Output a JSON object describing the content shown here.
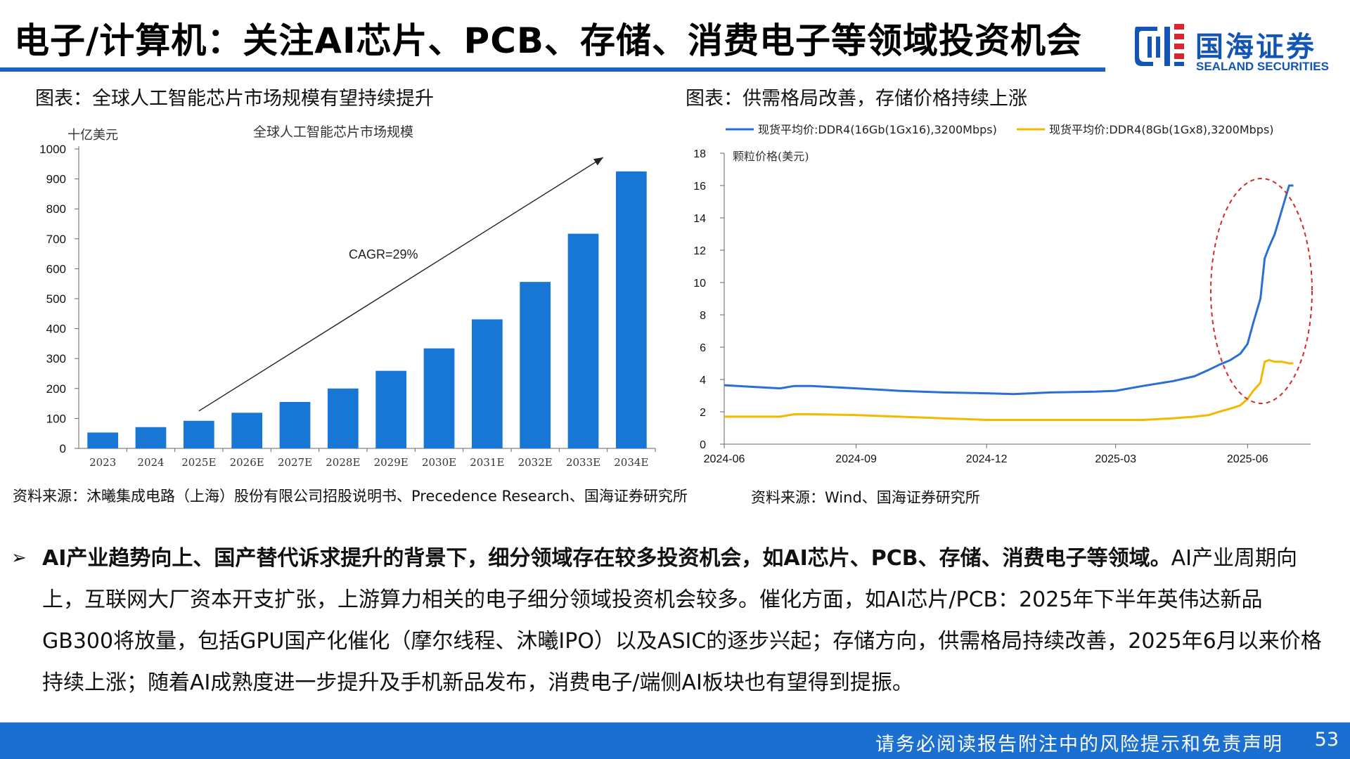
{
  "header": {
    "title": "电子/计算机：关注AI芯片、PCB、存储、消费电子等领域投资机会",
    "logo_cn": "国海证券",
    "logo_en": "SEALAND SECURITIES",
    "accent_color": "#1a62c4"
  },
  "left_figure": {
    "caption": "图表：全球人工智能芯片市场规模有望持续提升",
    "source": "资料来源：沐曦集成电路（上海）股份有限公司招股说明书、Precedence Research、国海证券研究所"
  },
  "right_figure": {
    "caption": "图表：供需格局改善，存储价格持续上涨",
    "source": "资料来源：Wind、国海证券研究所"
  },
  "chart_data": [
    {
      "type": "bar",
      "title": "全球人工智能芯片市场规模",
      "ylabel": "十亿美元",
      "xlabel": "",
      "categories": [
        "2023",
        "2024",
        "2025E",
        "2026E",
        "2027E",
        "2028E",
        "2029E",
        "2030E",
        "2031E",
        "2032E",
        "2033E",
        "2034E"
      ],
      "values": [
        53,
        71,
        92,
        119,
        155,
        200,
        259,
        334,
        431,
        556,
        717,
        925
      ],
      "ylim": [
        0,
        1000
      ],
      "yticks": [
        0,
        100,
        200,
        300,
        400,
        500,
        600,
        700,
        800,
        900,
        1000
      ],
      "annotation": "CAGR=29%",
      "bar_color": "#1877d4",
      "grid": false
    },
    {
      "type": "line",
      "ylabel": "颗粒价格(美元)",
      "ylim": [
        0,
        18
      ],
      "yticks": [
        0,
        2,
        4,
        6,
        8,
        10,
        12,
        14,
        16,
        18
      ],
      "xticks": [
        "2024-06",
        "2024-09",
        "2024-12",
        "2025-03",
        "2025-06"
      ],
      "x": [
        "2024-06-01",
        "2024-06-20",
        "2024-07-10",
        "2024-07-20",
        "2024-08-01",
        "2024-09-01",
        "2024-10-01",
        "2024-11-01",
        "2024-12-01",
        "2024-12-20",
        "2025-01-15",
        "2025-02-15",
        "2025-03-01",
        "2025-03-20",
        "2025-04-10",
        "2025-04-25",
        "2025-05-05",
        "2025-05-12",
        "2025-05-20",
        "2025-05-27",
        "2025-06-01",
        "2025-06-05",
        "2025-06-10",
        "2025-06-13",
        "2025-06-16",
        "2025-06-20",
        "2025-06-25",
        "2025-06-30",
        "2025-07-03"
      ],
      "series": [
        {
          "name": "现货平均价:DDR4(16Gb(1Gx16),3200Mbps)",
          "color": "#2a6fd6",
          "values": [
            3.65,
            3.55,
            3.45,
            3.6,
            3.6,
            3.45,
            3.3,
            3.2,
            3.15,
            3.1,
            3.2,
            3.25,
            3.3,
            3.6,
            3.9,
            4.2,
            4.6,
            4.9,
            5.2,
            5.6,
            6.2,
            7.5,
            9.0,
            11.5,
            12.2,
            13.0,
            14.5,
            16.0,
            16.0
          ]
        },
        {
          "name": "现货平均价:DDR4(8Gb(1Gx8),3200Mbps)",
          "color": "#f5b800",
          "values": [
            1.7,
            1.7,
            1.7,
            1.85,
            1.85,
            1.8,
            1.7,
            1.6,
            1.5,
            1.5,
            1.5,
            1.5,
            1.5,
            1.5,
            1.6,
            1.7,
            1.8,
            2.0,
            2.2,
            2.4,
            2.8,
            3.3,
            3.8,
            5.1,
            5.2,
            5.1,
            5.1,
            5.0,
            5.0
          ]
        }
      ],
      "grid": false,
      "legend_position": "top"
    }
  ],
  "summary": {
    "bullet": "➢",
    "bold_text": "AI产业趋势向上、国产替代诉求提升的背景下，细分领域存在较多投资机会，如AI芯片、PCB、存储、消费电子等领域。",
    "body_text": "AI产业周期向上，互联网大厂资本开支扩张，上游算力相关的电子细分领域投资机会较多。催化方面，如AI芯片/PCB：2025年下半年英伟达新品GB300将放量，包括GPU国产化催化（摩尔线程、沐曦IPO）以及ASIC的逐步兴起；存储方向，供需格局持续改善，2025年6月以来价格持续上涨；随着AI成熟度进一步提升及手机新品发布，消费电子/端侧AI板块也有望得到提振。"
  },
  "footer": {
    "disclaimer": "请务必阅读报告附注中的风险提示和免责声明",
    "page_number": "53",
    "bar_color": "#1a6fd0"
  }
}
